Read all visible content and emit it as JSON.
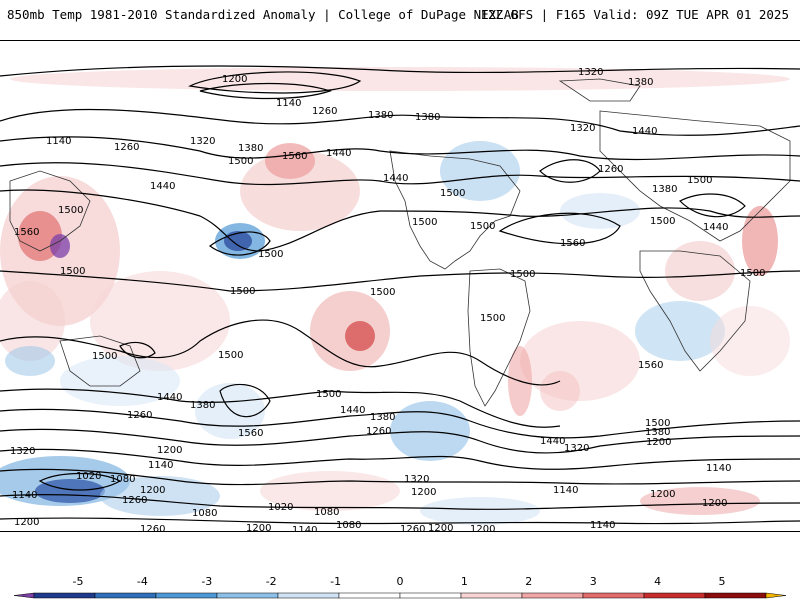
{
  "header": {
    "left_title": "850mb Temp 1981-2010 Standardized Anomaly | College of DuPage NEXLAB",
    "right_title": "12Z GFS | F165 Valid: 09Z TUE APR 01 2025"
  },
  "contour_labels": [
    {
      "text": "1200"
    },
    {
      "text": "1140"
    },
    {
      "text": "1260"
    },
    {
      "text": "1320"
    },
    {
      "text": "1380"
    },
    {
      "text": "1380"
    },
    {
      "text": "1380"
    },
    {
      "text": "1260"
    },
    {
      "text": "1320"
    },
    {
      "text": "1500"
    },
    {
      "text": "1380"
    },
    {
      "text": "1560"
    },
    {
      "text": "1440"
    },
    {
      "text": "1440"
    },
    {
      "text": "1440"
    },
    {
      "text": "1500"
    },
    {
      "text": "1500"
    },
    {
      "text": "1500"
    },
    {
      "text": "1500"
    },
    {
      "text": "1560"
    },
    {
      "text": "1500"
    },
    {
      "text": "1500"
    },
    {
      "text": "1500"
    },
    {
      "text": "1500"
    },
    {
      "text": "1500"
    },
    {
      "text": "1500"
    },
    {
      "text": "1500"
    },
    {
      "text": "1500"
    },
    {
      "text": "1440"
    },
    {
      "text": "1380"
    },
    {
      "text": "1260"
    },
    {
      "text": "1560"
    },
    {
      "text": "1500"
    },
    {
      "text": "1440"
    },
    {
      "text": "1380"
    },
    {
      "text": "1260"
    },
    {
      "text": "1320"
    },
    {
      "text": "1200"
    },
    {
      "text": "1140"
    },
    {
      "text": "1080"
    },
    {
      "text": "1020"
    },
    {
      "text": "1140"
    },
    {
      "text": "1200"
    },
    {
      "text": "1260"
    },
    {
      "text": "1080"
    },
    {
      "text": "1020"
    },
    {
      "text": "1260"
    },
    {
      "text": "1200"
    },
    {
      "text": "1140"
    },
    {
      "text": "1080"
    },
    {
      "text": "1260"
    },
    {
      "text": "1200"
    },
    {
      "text": "1140"
    },
    {
      "text": "1080"
    },
    {
      "text": "1320"
    },
    {
      "text": "1200"
    },
    {
      "text": "1140"
    },
    {
      "text": "1500"
    },
    {
      "text": "1440"
    },
    {
      "text": "1380"
    },
    {
      "text": "1320"
    },
    {
      "text": "1200"
    },
    {
      "text": "1200"
    },
    {
      "text": "1140"
    },
    {
      "text": "1320"
    },
    {
      "text": "1380"
    },
    {
      "text": "1440"
    },
    {
      "text": "1260"
    },
    {
      "text": "1560"
    },
    {
      "text": "1440"
    },
    {
      "text": "1500"
    },
    {
      "text": "1560"
    },
    {
      "text": "1500"
    },
    {
      "text": "1500"
    },
    {
      "text": "1200"
    },
    {
      "text": "1140"
    },
    {
      "text": "1200"
    },
    {
      "text": "1200"
    }
  ],
  "colorbar": {
    "ticks": [
      "-5",
      "-4",
      "-3",
      "-2",
      "-1",
      "0",
      "1",
      "2",
      "3",
      "4",
      "5"
    ],
    "colors": [
      "#7b3fa8",
      "#1f3a8a",
      "#2f6fb8",
      "#4f98d6",
      "#8cc0e8",
      "#cfe3f4",
      "#ffffff",
      "#ffffff",
      "#f7d3d3",
      "#f0a6a6",
      "#e26b6b",
      "#c82d2d",
      "#8a0c0c",
      "#f5b400"
    ]
  }
}
